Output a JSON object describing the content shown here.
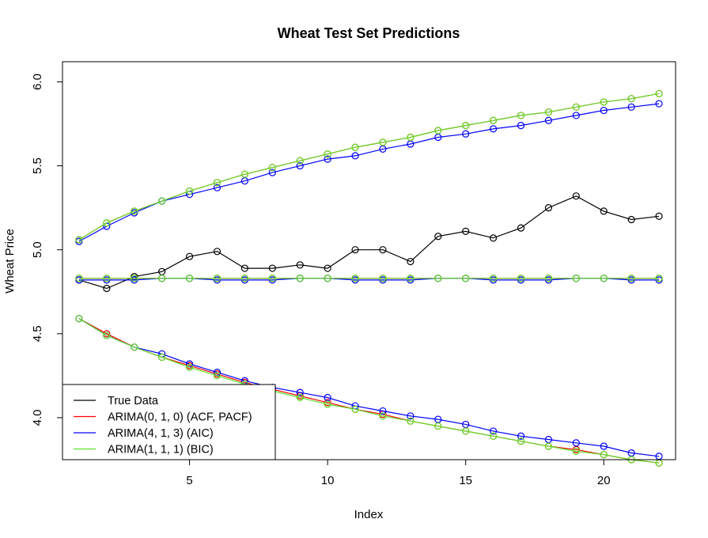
{
  "chart_data": {
    "type": "line",
    "title": "Wheat Test Set Predictions",
    "xlabel": "Index",
    "ylabel": "Wheat Price",
    "xlim": [
      0.4,
      22.6
    ],
    "ylim": [
      3.75,
      6.12
    ],
    "x_ticks": [
      5,
      10,
      15,
      20
    ],
    "y_ticks": [
      4.0,
      4.5,
      5.0,
      5.5,
      6.0
    ],
    "x_tick_labels": [
      "5",
      "10",
      "15",
      "20"
    ],
    "y_tick_labels": [
      "4.0",
      "4.5",
      "5.0",
      "5.5",
      "6.0"
    ],
    "x": [
      1,
      2,
      3,
      4,
      5,
      6,
      7,
      8,
      9,
      10,
      11,
      12,
      13,
      14,
      15,
      16,
      17,
      18,
      19,
      20,
      21,
      22
    ],
    "markers": "open-circle",
    "grid": false,
    "legend_position": "bottom-left",
    "series": [
      {
        "name": "True Data",
        "color": "#000000",
        "values": [
          4.82,
          4.77,
          4.84,
          4.87,
          4.96,
          4.99,
          4.89,
          4.89,
          4.91,
          4.89,
          5.0,
          5.0,
          4.93,
          5.08,
          5.11,
          5.07,
          5.13,
          5.25,
          5.32,
          5.23,
          5.18,
          5.2
        ]
      },
      {
        "name": "ARIMA(0, 1, 0) (ACF, PACF)",
        "color": "#ff0000",
        "values": [
          4.83,
          4.83,
          4.83,
          4.83,
          4.83,
          4.83,
          4.83,
          4.83,
          4.83,
          4.83,
          4.83,
          4.83,
          4.83,
          4.83,
          4.83,
          4.83,
          4.83,
          4.83,
          4.83,
          4.83,
          4.83,
          4.83
        ],
        "upper": [
          5.06,
          5.16,
          5.23,
          5.29,
          5.35,
          5.4,
          5.45,
          5.49,
          5.53,
          5.57,
          5.61,
          5.64,
          5.67,
          5.71,
          5.74,
          5.77,
          5.8,
          5.82,
          5.85,
          5.88,
          5.9,
          5.93
        ],
        "lower": [
          4.59,
          4.5,
          4.42,
          4.36,
          4.31,
          4.26,
          4.21,
          4.17,
          4.13,
          4.09,
          4.05,
          4.02,
          3.98,
          3.95,
          3.92,
          3.89,
          3.86,
          3.83,
          3.81,
          3.78,
          3.75,
          3.73
        ]
      },
      {
        "name": "ARIMA(4, 1, 3) (AIC)",
        "color": "#0000ff",
        "values": [
          4.82,
          4.82,
          4.82,
          4.83,
          4.83,
          4.82,
          4.82,
          4.82,
          4.83,
          4.83,
          4.82,
          4.82,
          4.82,
          4.83,
          4.83,
          4.82,
          4.82,
          4.82,
          4.83,
          4.83,
          4.82,
          4.82
        ],
        "upper": [
          5.05,
          5.14,
          5.22,
          5.29,
          5.33,
          5.37,
          5.41,
          5.46,
          5.5,
          5.54,
          5.56,
          5.6,
          5.63,
          5.67,
          5.69,
          5.72,
          5.74,
          5.77,
          5.8,
          5.83,
          5.85,
          5.87
        ],
        "lower": [
          4.59,
          4.49,
          4.42,
          4.38,
          4.32,
          4.27,
          4.22,
          4.18,
          4.15,
          4.12,
          4.07,
          4.04,
          4.01,
          3.99,
          3.96,
          3.92,
          3.89,
          3.87,
          3.85,
          3.83,
          3.79,
          3.77
        ]
      },
      {
        "name": "ARIMA(1, 1, 1) (BIC)",
        "color": "#5ee02a",
        "values": [
          4.83,
          4.83,
          4.83,
          4.83,
          4.83,
          4.83,
          4.83,
          4.83,
          4.83,
          4.83,
          4.83,
          4.83,
          4.83,
          4.83,
          4.83,
          4.83,
          4.83,
          4.83,
          4.83,
          4.83,
          4.83,
          4.83
        ],
        "upper": [
          5.06,
          5.16,
          5.23,
          5.29,
          5.35,
          5.4,
          5.45,
          5.49,
          5.53,
          5.57,
          5.61,
          5.64,
          5.67,
          5.71,
          5.74,
          5.77,
          5.8,
          5.82,
          5.85,
          5.88,
          5.9,
          5.93
        ],
        "lower": [
          4.59,
          4.49,
          4.42,
          4.36,
          4.3,
          4.25,
          4.2,
          4.16,
          4.12,
          4.08,
          4.05,
          4.01,
          3.98,
          3.95,
          3.92,
          3.89,
          3.86,
          3.83,
          3.8,
          3.78,
          3.75,
          3.73
        ]
      }
    ]
  }
}
